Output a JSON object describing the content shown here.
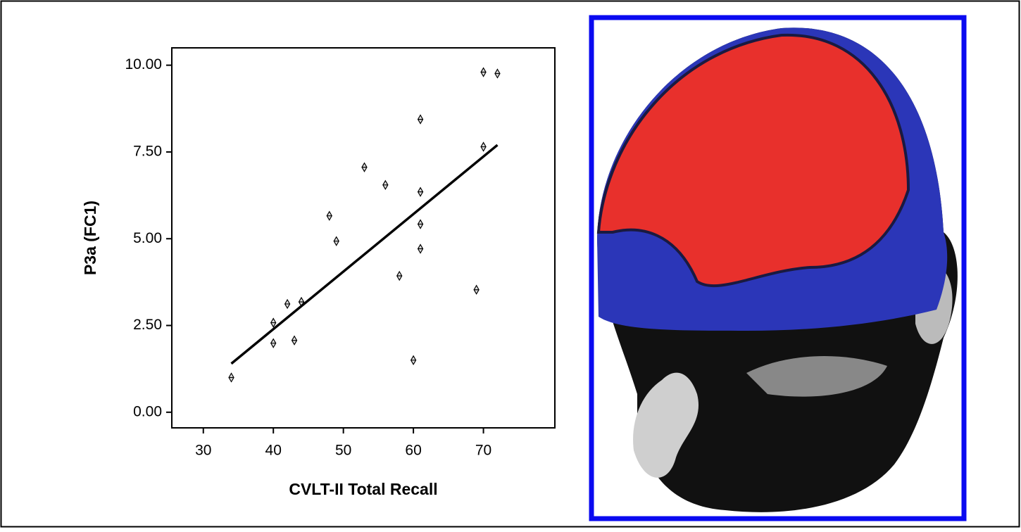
{
  "chart_data": {
    "type": "scatter",
    "x_label": "CVLT-II Total Recall",
    "y_label": "P3a (FC1)",
    "x": [
      34,
      40,
      40,
      42,
      43,
      44,
      48,
      49,
      53,
      56,
      58,
      60,
      61,
      61,
      61,
      61,
      69,
      70,
      70,
      72
    ],
    "y": [
      1.0,
      2.58,
      1.99,
      3.12,
      2.07,
      3.18,
      5.66,
      4.93,
      7.06,
      6.55,
      3.93,
      1.5,
      8.44,
      6.35,
      5.42,
      4.71,
      3.53,
      9.8,
      7.65,
      9.76
    ],
    "color": "#000000",
    "fit_line": {
      "x": [
        34,
        72
      ],
      "y": [
        1.4,
        7.7
      ]
    },
    "xlim": [
      25.5,
      80.2
    ],
    "ylim": [
      -0.45,
      10.5
    ],
    "xticks": [
      30,
      40,
      50,
      60,
      70
    ],
    "yticks": [
      {
        "value": 0,
        "label": "0.00"
      },
      {
        "value": 2.5,
        "label": "2.50"
      },
      {
        "value": 5,
        "label": "5.00"
      },
      {
        "value": 7.5,
        "label": "7.50"
      },
      {
        "value": 10,
        "label": "10.00"
      }
    ],
    "grid": false
  }
}
